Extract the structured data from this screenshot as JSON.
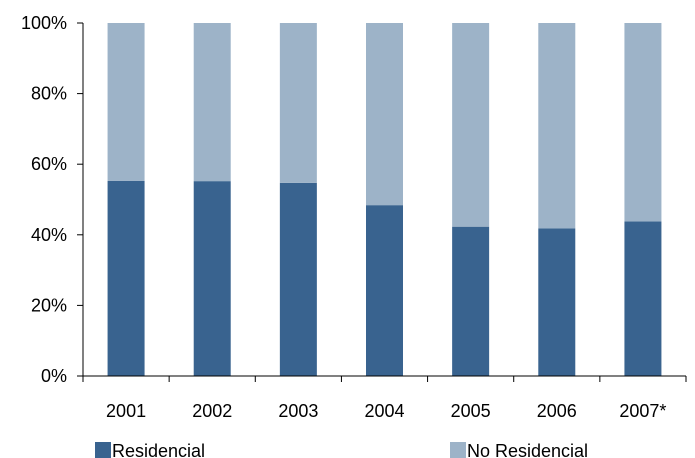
{
  "chart_data": {
    "type": "bar",
    "stacked": true,
    "percent": true,
    "categories": [
      "2001",
      "2002",
      "2003",
      "2004",
      "2005",
      "2006",
      "2007*"
    ],
    "series": [
      {
        "name": "Residencial",
        "color": "#39638F",
        "values": [
          55.3,
          55.2,
          54.7,
          48.4,
          42.3,
          41.8,
          43.8
        ]
      },
      {
        "name": "No Residencial",
        "color": "#9DB3C8",
        "values": [
          44.7,
          44.8,
          45.3,
          51.6,
          57.7,
          58.2,
          56.2
        ]
      }
    ],
    "ylim": [
      0,
      100
    ],
    "yticks": [
      {
        "value": 0,
        "label": "0%"
      },
      {
        "value": 20,
        "label": "20%"
      },
      {
        "value": 40,
        "label": "40%"
      },
      {
        "value": 60,
        "label": "60%"
      },
      {
        "value": 80,
        "label": "80%"
      },
      {
        "value": 100,
        "label": "100%"
      }
    ],
    "grid": false,
    "legend": "bottom"
  }
}
